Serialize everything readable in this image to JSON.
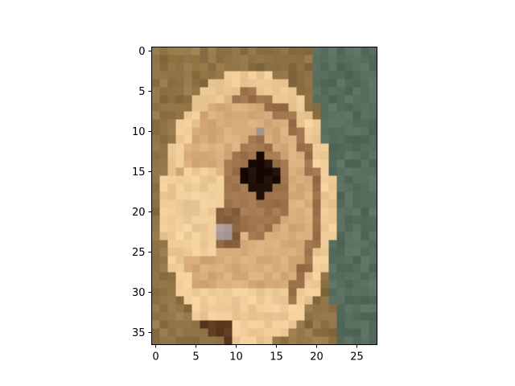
{
  "chart_data": {
    "type": "heatmap",
    "title": "",
    "xlabel": "",
    "ylabel": "",
    "grid": false,
    "legend": "none",
    "image_shape": {
      "rows": 37,
      "cols": 28
    },
    "xlim": [
      -0.5,
      27.5
    ],
    "ylim": [
      36.5,
      -0.5
    ],
    "x_ticks": [
      0,
      5,
      10,
      15,
      20,
      25
    ],
    "x_tick_labels": [
      "0",
      "5",
      "10",
      "15",
      "20",
      "25"
    ],
    "y_ticks": [
      0,
      5,
      10,
      15,
      20,
      25,
      30,
      35
    ],
    "y_tick_labels": [
      "0",
      "5",
      "10",
      "15",
      "20",
      "25",
      "30",
      "35"
    ],
    "image_subject": "pixelated close-up of a human ear",
    "palette": {
      "background_green": "#586c5e",
      "hair_brown": "#9a7c4a",
      "skin_mid": "#c89868",
      "skin_light": "#e8c08c",
      "skin_highlight": "#f2d3a0",
      "shadow_dark": "#4a2a14",
      "canal_black": "#1e0e08",
      "lobe_shadow": "#6e4a2c",
      "grey_spot": "#a99a96"
    }
  }
}
